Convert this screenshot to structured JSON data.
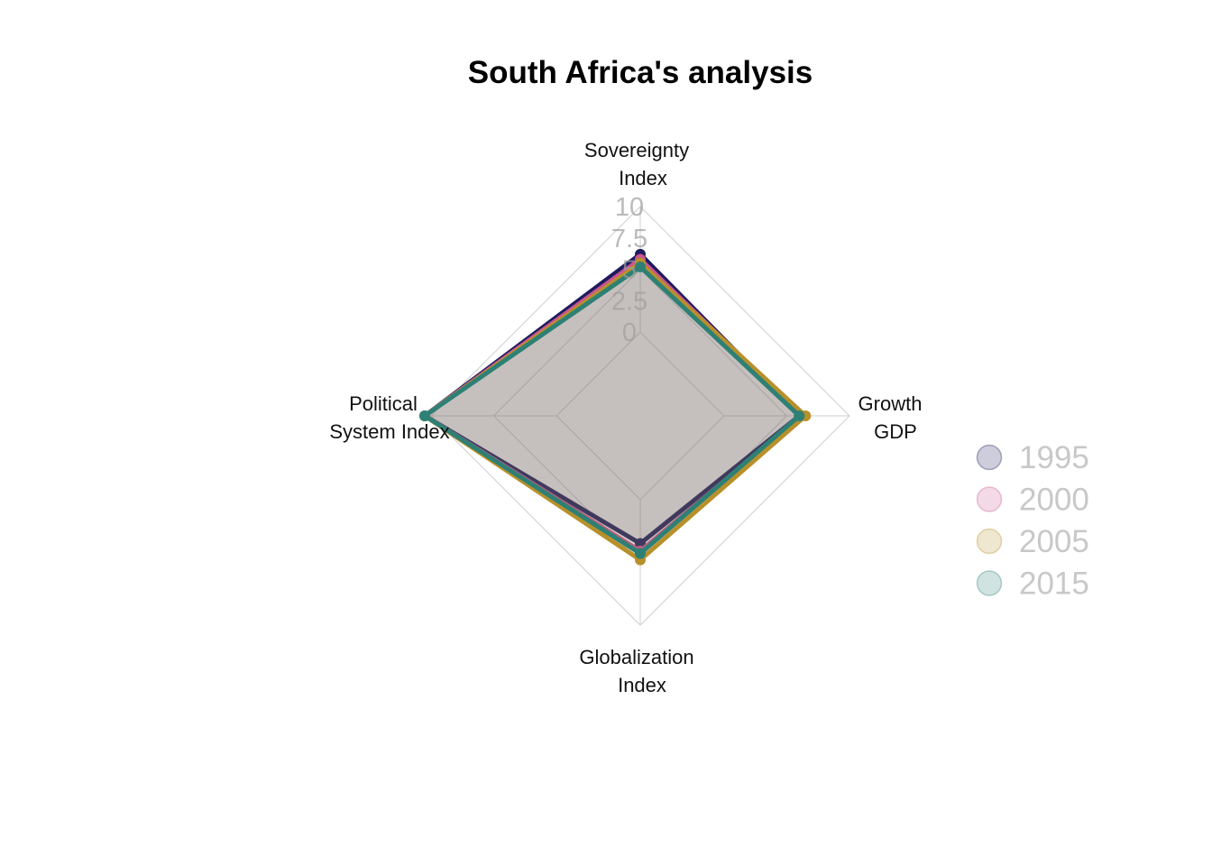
{
  "chart_data": {
    "type": "radar",
    "title": "South Africa's analysis",
    "axes": [
      {
        "label_lines": [
          "Sovereignty",
          "Index"
        ]
      },
      {
        "label_lines": [
          "Growth",
          "GDP"
        ]
      },
      {
        "label_lines": [
          "Globalization",
          "Index"
        ]
      },
      {
        "label_lines": [
          "Political",
          "System Index"
        ]
      }
    ],
    "range": [
      0,
      10
    ],
    "ticks": [
      "0",
      "2.5",
      "5",
      "7.5",
      "10"
    ],
    "tick_values": [
      0,
      2.5,
      5,
      7.5,
      10
    ],
    "legend_position": "right",
    "series": [
      {
        "name": "1995",
        "color": "#1f1b5e",
        "values": [
          6.2,
          6.0,
          3.5,
          10.5
        ]
      },
      {
        "name": "2000",
        "color": "#c9568f",
        "values": [
          5.8,
          6.2,
          4.1,
          10.5
        ]
      },
      {
        "name": "2005",
        "color": "#b8902a",
        "values": [
          5.5,
          6.5,
          4.8,
          10.5
        ]
      },
      {
        "name": "2015",
        "color": "#2e8075",
        "values": [
          5.2,
          6.0,
          4.3,
          10.5
        ]
      }
    ]
  }
}
